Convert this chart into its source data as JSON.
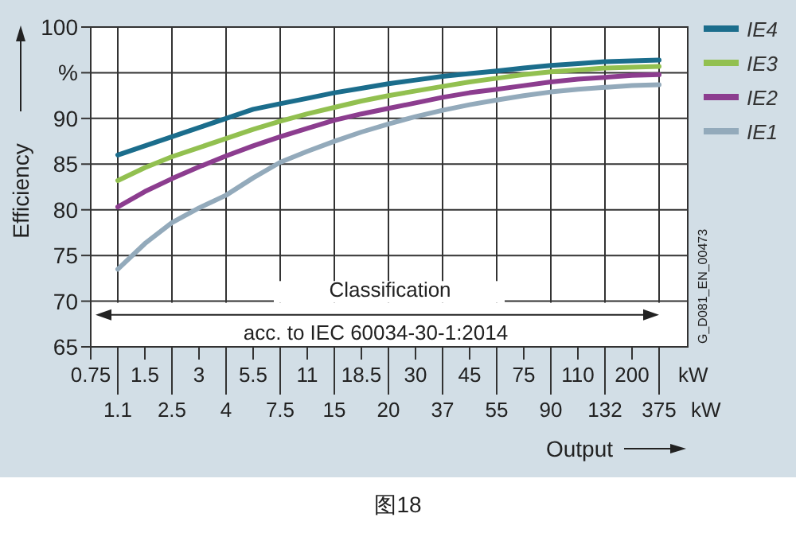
{
  "chart_data": {
    "type": "line",
    "xlabel": "Output",
    "ylabel": "Efficiency",
    "categories": [
      "0.75",
      "1.1",
      "1.5",
      "2.5",
      "3",
      "4",
      "5.5",
      "7.5",
      "11",
      "15",
      "18.5",
      "20",
      "30",
      "37",
      "45",
      "55",
      "75",
      "90",
      "110",
      "132",
      "200",
      "375"
    ],
    "series": [
      {
        "name": "IE4",
        "color": "#1b6d8c",
        "values": [
          null,
          86.0,
          87.0,
          88.0,
          89.0,
          90.0,
          91.0,
          91.6,
          92.2,
          92.8,
          93.3,
          93.8,
          94.2,
          94.6,
          94.9,
          95.2,
          95.5,
          95.8,
          96.0,
          96.2,
          96.3,
          96.4
        ]
      },
      {
        "name": "IE3",
        "color": "#92c050",
        "values": [
          null,
          83.2,
          84.6,
          85.8,
          86.8,
          87.8,
          88.8,
          89.7,
          90.5,
          91.2,
          91.9,
          92.5,
          93.0,
          93.5,
          94.0,
          94.4,
          94.8,
          95.1,
          95.3,
          95.5,
          95.6,
          95.7
        ]
      },
      {
        "name": "IE2",
        "color": "#8c3d8f",
        "values": [
          null,
          80.3,
          82.0,
          83.4,
          84.7,
          85.9,
          87.0,
          88.0,
          88.9,
          89.8,
          90.5,
          91.1,
          91.7,
          92.3,
          92.8,
          93.2,
          93.6,
          94.0,
          94.3,
          94.5,
          94.7,
          94.8
        ]
      },
      {
        "name": "IE1",
        "color": "#93aabb",
        "values": [
          null,
          73.5,
          76.3,
          78.6,
          80.2,
          81.6,
          83.5,
          85.2,
          86.4,
          87.5,
          88.5,
          89.4,
          90.2,
          90.9,
          91.5,
          92.0,
          92.5,
          92.9,
          93.2,
          93.4,
          93.6,
          93.7
        ]
      }
    ],
    "ylim": [
      65,
      100
    ],
    "yticks": [
      65,
      70,
      75,
      80,
      85,
      90,
      {
        "value": 95,
        "label": "%"
      },
      100
    ],
    "grid": true,
    "legend": "right",
    "annotations": [
      "Classification",
      "acc. to IEC 60034-30-1:2014",
      "G_D081_EN_00473",
      "kW",
      "kW",
      "图18"
    ]
  }
}
